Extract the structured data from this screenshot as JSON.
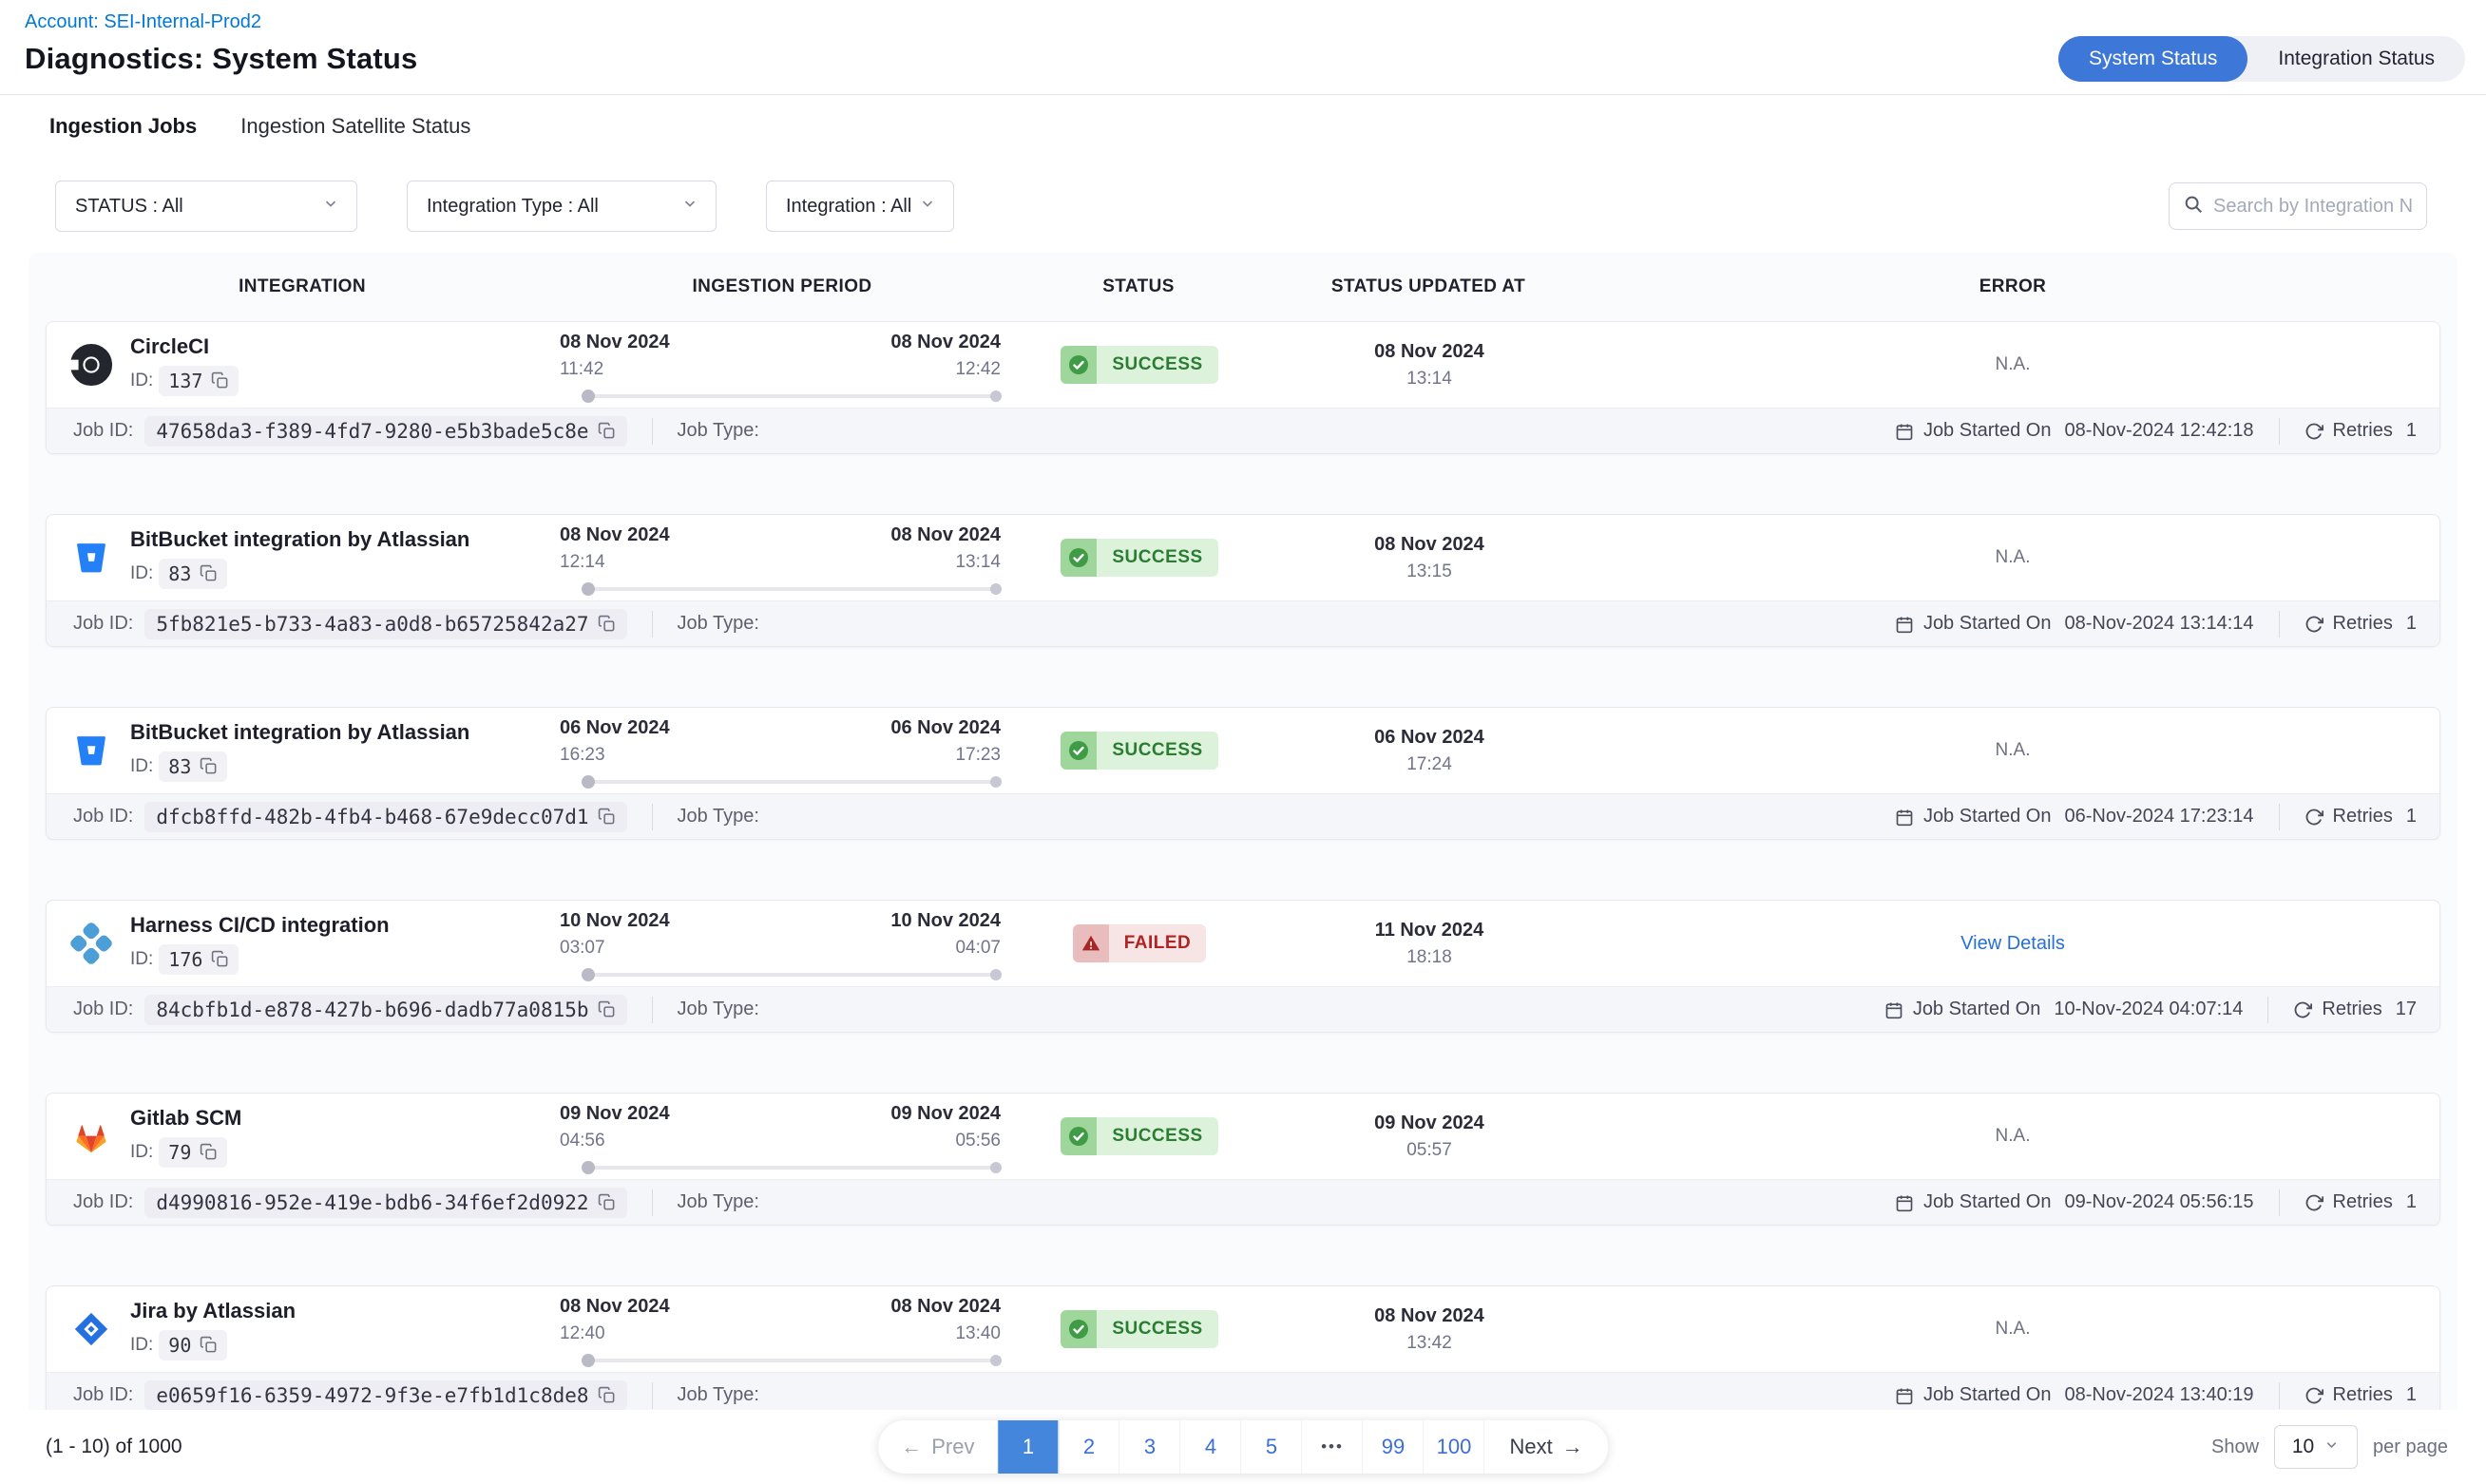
{
  "colors": {
    "accent_blue": "#3d77d8",
    "link_blue": "#0278d5",
    "success_green": "#2b7d33",
    "failed_red": "#b12222"
  },
  "header": {
    "account_link": "Account: SEI-Internal-Prod2",
    "title": "Diagnostics: System Status",
    "view_toggle": [
      {
        "label": "System Status",
        "active": true
      },
      {
        "label": "Integration Status",
        "active": false
      }
    ]
  },
  "tabs": [
    {
      "label": "Ingestion Jobs",
      "active": true
    },
    {
      "label": "Ingestion Satellite Status",
      "active": false
    }
  ],
  "filters": {
    "status": "STATUS : All",
    "integration_type": "Integration Type : All",
    "integration": "Integration : All",
    "search_placeholder": "Search by Integration Name"
  },
  "table": {
    "columns": [
      "INTEGRATION",
      "INGESTION PERIOD",
      "STATUS",
      "STATUS UPDATED AT",
      "ERROR"
    ],
    "row_labels": {
      "id": "ID:",
      "job_id": "Job ID:",
      "job_type": "Job Type:",
      "job_started": "Job Started On",
      "retries": "Retries"
    },
    "rows": [
      {
        "icon": "circleci",
        "name": "CircleCI",
        "id": "137",
        "start_date": "08 Nov 2024",
        "start_time": "11:42",
        "end_date": "08 Nov 2024",
        "end_time": "12:42",
        "status": "SUCCESS",
        "status_type": "success",
        "updated_date": "08 Nov 2024",
        "updated_time": "13:14",
        "error": "N.A.",
        "error_type": "none",
        "job_id": "47658da3-f389-4fd7-9280-e5b3bade5c8e",
        "job_started": "08-Nov-2024 12:42:18",
        "retries": "1"
      },
      {
        "icon": "bitbucket",
        "name": "BitBucket integration by Atlassian",
        "id": "83",
        "start_date": "08 Nov 2024",
        "start_time": "12:14",
        "end_date": "08 Nov 2024",
        "end_time": "13:14",
        "status": "SUCCESS",
        "status_type": "success",
        "updated_date": "08 Nov 2024",
        "updated_time": "13:15",
        "error": "N.A.",
        "error_type": "none",
        "job_id": "5fb821e5-b733-4a83-a0d8-b65725842a27",
        "job_started": "08-Nov-2024 13:14:14",
        "retries": "1"
      },
      {
        "icon": "bitbucket",
        "name": "BitBucket integration by Atlassian",
        "id": "83",
        "start_date": "06 Nov 2024",
        "start_time": "16:23",
        "end_date": "06 Nov 2024",
        "end_time": "17:23",
        "status": "SUCCESS",
        "status_type": "success",
        "updated_date": "06 Nov 2024",
        "updated_time": "17:24",
        "error": "N.A.",
        "error_type": "none",
        "job_id": "dfcb8ffd-482b-4fb4-b468-67e9decc07d1",
        "job_started": "06-Nov-2024 17:23:14",
        "retries": "1"
      },
      {
        "icon": "harness",
        "name": "Harness CI/CD integration",
        "id": "176",
        "start_date": "10 Nov 2024",
        "start_time": "03:07",
        "end_date": "10 Nov 2024",
        "end_time": "04:07",
        "status": "FAILED",
        "status_type": "failed",
        "updated_date": "11 Nov 2024",
        "updated_time": "18:18",
        "error": "View Details",
        "error_type": "link",
        "job_id": "84cbfb1d-e878-427b-b696-dadb77a0815b",
        "job_started": "10-Nov-2024 04:07:14",
        "retries": "17"
      },
      {
        "icon": "gitlab",
        "name": "Gitlab SCM",
        "id": "79",
        "start_date": "09 Nov 2024",
        "start_time": "04:56",
        "end_date": "09 Nov 2024",
        "end_time": "05:56",
        "status": "SUCCESS",
        "status_type": "success",
        "updated_date": "09 Nov 2024",
        "updated_time": "05:57",
        "error": "N.A.",
        "error_type": "none",
        "job_id": "d4990816-952e-419e-bdb6-34f6ef2d0922",
        "job_started": "09-Nov-2024 05:56:15",
        "retries": "1"
      },
      {
        "icon": "jira",
        "name": "Jira by Atlassian",
        "id": "90",
        "start_date": "08 Nov 2024",
        "start_time": "12:40",
        "end_date": "08 Nov 2024",
        "end_time": "13:40",
        "status": "SUCCESS",
        "status_type": "success",
        "updated_date": "08 Nov 2024",
        "updated_time": "13:42",
        "error": "N.A.",
        "error_type": "none",
        "job_id": "e0659f16-6359-4972-9f3e-e7fb1d1c8de8",
        "job_started": "08-Nov-2024 13:40:19",
        "retries": "1"
      }
    ]
  },
  "pagination": {
    "summary": "(1 - 10) of 1000",
    "prev": "Prev",
    "prev_arrow": "←",
    "pages": [
      "1",
      "2",
      "3",
      "4",
      "5",
      "•••",
      "99",
      "100"
    ],
    "active_page": "1",
    "next": "Next",
    "next_arrow": "→",
    "show_label": "Show",
    "page_size": "10",
    "per_page_label": "per page"
  },
  "icons": {
    "search": "magnifier",
    "chevron_down": "chevron-down",
    "copy": "overlapping-squares",
    "calendar": "calendar",
    "retries": "circular-arrow-refresh",
    "success": "check-circle",
    "failed": "warning-triangle",
    "circleci": "circleci-logo",
    "bitbucket": "bitbucket-logo",
    "harness": "harness-logo",
    "gitlab": "gitlab-logo",
    "jira": "jira-logo"
  }
}
